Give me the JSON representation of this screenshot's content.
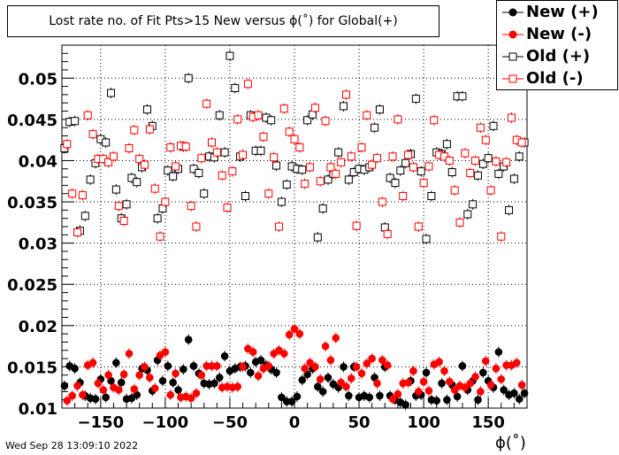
{
  "title": "Lost rate no. of Fit Pts>15 New versus ϕ(˚) for Global(+)",
  "timestamp": "Wed Sep 28 13:09:10 2022",
  "chart_data": {
    "type": "scatter",
    "xlabel": "ϕ(˚)",
    "ylabel": "",
    "xlim": [
      -180,
      180
    ],
    "ylim": [
      0.01,
      0.054
    ],
    "xticks": [
      -150,
      -100,
      -50,
      0,
      50,
      100,
      150
    ],
    "xtick_labels": [
      "−150",
      "−100",
      "−50",
      "0",
      "50",
      "100",
      "150"
    ],
    "yticks": [
      0.01,
      0.015,
      0.02,
      0.025,
      0.03,
      0.035,
      0.04,
      0.045,
      0.05
    ],
    "ytick_labels": [
      "0.01",
      "0.015",
      "0.02",
      "0.025",
      "0.03",
      "0.035",
      "0.04",
      "0.045",
      "0.05"
    ],
    "legend_position": "top-right",
    "series": [
      {
        "name": "New (+)",
        "color": "#000000",
        "marker": "filled-circle",
        "x": [
          -178,
          -174,
          -170,
          -166,
          -162,
          -158,
          -154,
          -150,
          -146,
          -142,
          -138,
          -134,
          -130,
          -126,
          -122,
          -118,
          -114,
          -110,
          -106,
          -102,
          -98,
          -94,
          -90,
          -86,
          -82,
          -78,
          -74,
          -70,
          -66,
          -62,
          -58,
          -54,
          -50,
          -46,
          -42,
          -38,
          -34,
          -30,
          -26,
          -22,
          -18,
          -14,
          -10,
          -6,
          -2,
          2,
          6,
          10,
          14,
          18,
          22,
          26,
          30,
          34,
          38,
          42,
          46,
          50,
          54,
          58,
          62,
          66,
          70,
          74,
          78,
          82,
          86,
          90,
          94,
          98,
          102,
          106,
          110,
          114,
          118,
          122,
          126,
          130,
          134,
          138,
          142,
          146,
          150,
          154,
          158,
          162,
          166,
          170,
          174,
          178
        ],
        "y": [
          0.0127,
          0.0151,
          0.0148,
          0.0131,
          0.0115,
          0.0112,
          0.0111,
          0.0135,
          0.0113,
          0.0133,
          0.0155,
          0.0131,
          0.0111,
          0.0112,
          0.0116,
          0.0148,
          0.0146,
          0.0121,
          0.0158,
          0.0133,
          0.0151,
          0.0131,
          0.0122,
          0.0147,
          0.0183,
          0.0151,
          0.0142,
          0.013,
          0.0129,
          0.013,
          0.0137,
          0.0163,
          0.0145,
          0.0148,
          0.015,
          0.0151,
          0.0143,
          0.0156,
          0.0158,
          0.0152,
          0.0147,
          0.0143,
          0.0113,
          0.0108,
          0.0108,
          0.0114,
          0.0134,
          0.0141,
          0.0148,
          0.0126,
          0.012,
          0.0137,
          0.0129,
          0.0125,
          0.015,
          0.0115,
          0.015,
          0.0113,
          0.0115,
          0.0113,
          0.0137,
          0.0115,
          0.015,
          0.0115,
          0.011,
          0.0107,
          0.0104,
          0.0133,
          0.0115,
          0.0116,
          0.0143,
          0.011,
          0.0109,
          0.013,
          0.011,
          0.0128,
          0.0114,
          0.0151,
          0.0122,
          0.0133,
          0.011,
          0.0143,
          0.0133,
          0.0125,
          0.0168,
          0.0122,
          0.0116,
          0.0118,
          0.0111,
          0.0118
        ]
      },
      {
        "name": "New (-)",
        "color": "#ff0000",
        "marker": "filled-circle",
        "x": [
          -176,
          -172,
          -168,
          -164,
          -160,
          -156,
          -152,
          -148,
          -144,
          -140,
          -136,
          -132,
          -128,
          -124,
          -120,
          -116,
          -112,
          -108,
          -104,
          -100,
          -96,
          -92,
          -88,
          -84,
          -80,
          -76,
          -72,
          -68,
          -64,
          -60,
          -56,
          -52,
          -48,
          -44,
          -40,
          -36,
          -32,
          -28,
          -24,
          -20,
          -16,
          -12,
          -8,
          -4,
          0,
          4,
          8,
          12,
          16,
          20,
          24,
          28,
          32,
          36,
          40,
          44,
          48,
          52,
          56,
          60,
          64,
          68,
          72,
          76,
          80,
          84,
          88,
          92,
          96,
          100,
          104,
          108,
          112,
          116,
          120,
          124,
          128,
          132,
          136,
          140,
          144,
          148,
          152,
          156,
          160,
          164,
          168,
          172,
          176
        ],
        "y": [
          0.0109,
          0.0115,
          0.0127,
          0.0116,
          0.0152,
          0.0155,
          0.013,
          0.0122,
          0.014,
          0.0125,
          0.0122,
          0.0141,
          0.0166,
          0.0123,
          0.014,
          0.015,
          0.0137,
          0.0124,
          0.0164,
          0.0168,
          0.0116,
          0.0142,
          0.0113,
          0.0114,
          0.0112,
          0.0118,
          0.014,
          0.0151,
          0.0151,
          0.0151,
          0.0125,
          0.0126,
          0.0125,
          0.0126,
          0.015,
          0.0172,
          0.0168,
          0.0139,
          0.0148,
          0.0151,
          0.0166,
          0.017,
          0.0166,
          0.0189,
          0.0196,
          0.019,
          0.0148,
          0.0155,
          0.015,
          0.0135,
          0.0175,
          0.0158,
          0.0185,
          0.0131,
          0.0126,
          0.0136,
          0.015,
          0.0142,
          0.0154,
          0.016,
          0.013,
          0.0158,
          0.0152,
          0.0111,
          0.0117,
          0.013,
          0.0131,
          0.0145,
          0.012,
          0.0132,
          0.0121,
          0.0153,
          0.0156,
          0.0145,
          0.0132,
          0.0122,
          0.0127,
          0.0125,
          0.013,
          0.0138,
          0.012,
          0.0157,
          0.0128,
          0.0148,
          0.0135,
          0.0152,
          0.0152,
          0.0155,
          0.0128
        ]
      },
      {
        "name": "Old (+)",
        "color": "#000000",
        "marker": "open-square",
        "x": [
          -178,
          -174,
          -170,
          -166,
          -162,
          -158,
          -154,
          -150,
          -146,
          -142,
          -138,
          -134,
          -130,
          -126,
          -122,
          -118,
          -114,
          -110,
          -106,
          -102,
          -98,
          -94,
          -90,
          -86,
          -82,
          -78,
          -74,
          -70,
          -66,
          -62,
          -58,
          -54,
          -50,
          -46,
          -42,
          -38,
          -34,
          -30,
          -26,
          -22,
          -18,
          -14,
          -10,
          -6,
          -2,
          2,
          6,
          10,
          14,
          18,
          22,
          26,
          30,
          34,
          38,
          42,
          46,
          50,
          54,
          58,
          62,
          66,
          70,
          74,
          78,
          82,
          86,
          90,
          94,
          98,
          102,
          106,
          110,
          114,
          118,
          122,
          126,
          130,
          134,
          138,
          142,
          146,
          150,
          154,
          158,
          162,
          166,
          170,
          174,
          178
        ],
        "y": [
          0.0415,
          0.0447,
          0.0448,
          0.0315,
          0.0333,
          0.0377,
          0.0397,
          0.0426,
          0.0422,
          0.0482,
          0.0365,
          0.033,
          0.0347,
          0.0379,
          0.0374,
          0.0392,
          0.0462,
          0.0442,
          0.033,
          0.0342,
          0.0388,
          0.0381,
          0.039,
          0.0417,
          0.05,
          0.039,
          0.0385,
          0.036,
          0.0405,
          0.0404,
          0.0455,
          0.041,
          0.0527,
          0.0488,
          0.0405,
          0.0357,
          0.0455,
          0.0412,
          0.0412,
          0.0452,
          0.0449,
          0.0394,
          0.035,
          0.0371,
          0.0393,
          0.039,
          0.0389,
          0.0449,
          0.0456,
          0.0307,
          0.0342,
          0.0377,
          0.0384,
          0.041,
          0.0466,
          0.0377,
          0.0386,
          0.039,
          0.0389,
          0.0392,
          0.044,
          0.0462,
          0.0319,
          0.0379,
          0.0373,
          0.0388,
          0.0397,
          0.0408,
          0.0475,
          0.0387,
          0.0305,
          0.0357,
          0.041,
          0.0408,
          0.042,
          0.0386,
          0.0478,
          0.0478,
          0.0335,
          0.0347,
          0.0382,
          0.0396,
          0.0403,
          0.0442,
          0.0384,
          0.0393,
          0.034,
          0.0378,
          0.0405,
          0.0422
        ]
      },
      {
        "name": "Old (-)",
        "color": "#ff0000",
        "marker": "open-square",
        "x": [
          -176,
          -172,
          -168,
          -164,
          -160,
          -156,
          -152,
          -148,
          -144,
          -140,
          -136,
          -132,
          -128,
          -124,
          -120,
          -116,
          -112,
          -108,
          -104,
          -100,
          -96,
          -92,
          -88,
          -84,
          -80,
          -76,
          -72,
          -68,
          -64,
          -60,
          -56,
          -52,
          -48,
          -44,
          -40,
          -36,
          -32,
          -28,
          -24,
          -20,
          -16,
          -12,
          -8,
          -4,
          0,
          4,
          8,
          12,
          16,
          20,
          24,
          28,
          32,
          36,
          40,
          44,
          48,
          52,
          56,
          60,
          64,
          68,
          72,
          76,
          80,
          84,
          88,
          92,
          96,
          100,
          104,
          108,
          112,
          116,
          120,
          124,
          128,
          132,
          136,
          140,
          144,
          148,
          152,
          156,
          160,
          164,
          168,
          172,
          176
        ],
        "y": [
          0.042,
          0.036,
          0.0313,
          0.0358,
          0.0455,
          0.0432,
          0.0402,
          0.0402,
          0.0398,
          0.0405,
          0.0345,
          0.0327,
          0.0415,
          0.0437,
          0.0402,
          0.0395,
          0.0438,
          0.0366,
          0.0308,
          0.035,
          0.0416,
          0.0393,
          0.0418,
          0.0417,
          0.0345,
          0.032,
          0.0403,
          0.0469,
          0.0422,
          0.041,
          0.0382,
          0.0343,
          0.0387,
          0.045,
          0.0407,
          0.0493,
          0.0453,
          0.0455,
          0.0429,
          0.036,
          0.0404,
          0.032,
          0.0463,
          0.0435,
          0.0426,
          0.0416,
          0.0372,
          0.0392,
          0.0464,
          0.0375,
          0.0448,
          0.0392,
          0.0384,
          0.0398,
          0.048,
          0.0405,
          0.0321,
          0.0416,
          0.0455,
          0.0395,
          0.0403,
          0.035,
          0.0311,
          0.0405,
          0.045,
          0.0357,
          0.0407,
          0.0392,
          0.032,
          0.0373,
          0.0393,
          0.0449,
          0.0407,
          0.0405,
          0.04,
          0.0364,
          0.0325,
          0.0409,
          0.0385,
          0.04,
          0.044,
          0.0425,
          0.0364,
          0.0399,
          0.0308,
          0.0398,
          0.0452,
          0.0425,
          0.0422
        ]
      }
    ]
  }
}
